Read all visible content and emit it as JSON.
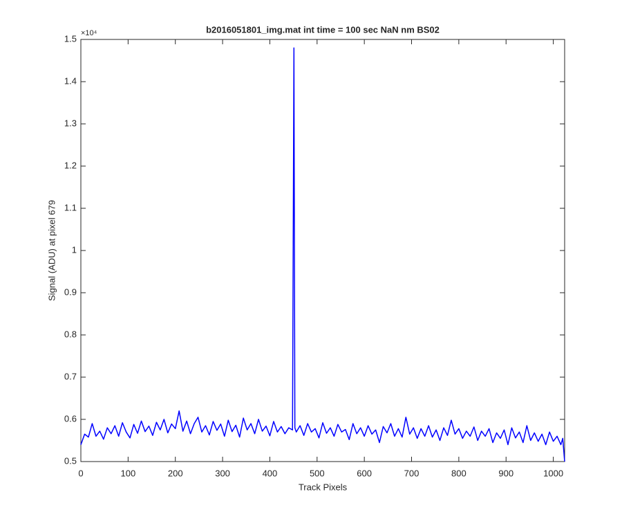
{
  "chart_data": {
    "type": "line",
    "title": "b2016051801_img.mat int time = 100 sec  NaN nm BS02",
    "x_label": "Track Pixels",
    "y_label": "Signal (ADU) at pixel 679",
    "y_exponent_label": "×10⁴",
    "x": [
      0,
      8,
      16,
      24,
      32,
      40,
      48,
      56,
      64,
      72,
      80,
      88,
      96,
      104,
      112,
      120,
      128,
      136,
      144,
      152,
      160,
      168,
      176,
      184,
      192,
      200,
      208,
      216,
      224,
      232,
      240,
      248,
      256,
      264,
      272,
      280,
      288,
      296,
      304,
      312,
      320,
      328,
      336,
      344,
      352,
      360,
      368,
      376,
      384,
      392,
      400,
      408,
      416,
      424,
      432,
      440,
      448,
      451,
      453,
      456,
      464,
      472,
      480,
      488,
      496,
      504,
      512,
      520,
      528,
      536,
      544,
      552,
      560,
      568,
      576,
      584,
      592,
      600,
      608,
      616,
      624,
      632,
      640,
      648,
      656,
      664,
      672,
      680,
      688,
      696,
      704,
      712,
      720,
      728,
      736,
      744,
      752,
      760,
      768,
      776,
      784,
      792,
      800,
      808,
      816,
      824,
      832,
      840,
      848,
      856,
      864,
      872,
      880,
      888,
      896,
      904,
      912,
      920,
      928,
      936,
      944,
      952,
      960,
      968,
      976,
      984,
      992,
      1000,
      1008,
      1016,
      1020,
      1024
    ],
    "series": [
      {
        "color": "#0000ff",
        "values": [
          0.54,
          0.565,
          0.558,
          0.59,
          0.56,
          0.572,
          0.553,
          0.58,
          0.566,
          0.585,
          0.56,
          0.592,
          0.57,
          0.556,
          0.588,
          0.567,
          0.596,
          0.571,
          0.584,
          0.562,
          0.593,
          0.575,
          0.6,
          0.568,
          0.589,
          0.578,
          0.62,
          0.572,
          0.596,
          0.566,
          0.59,
          0.605,
          0.57,
          0.585,
          0.563,
          0.595,
          0.574,
          0.589,
          0.56,
          0.598,
          0.571,
          0.586,
          0.558,
          0.603,
          0.575,
          0.59,
          0.566,
          0.6,
          0.572,
          0.584,
          0.561,
          0.595,
          0.57,
          0.583,
          0.566,
          0.58,
          0.575,
          1.48,
          0.58,
          0.57,
          0.585,
          0.562,
          0.59,
          0.57,
          0.578,
          0.556,
          0.592,
          0.567,
          0.58,
          0.56,
          0.588,
          0.57,
          0.576,
          0.552,
          0.59,
          0.566,
          0.58,
          0.56,
          0.585,
          0.565,
          0.575,
          0.545,
          0.583,
          0.568,
          0.59,
          0.56,
          0.578,
          0.558,
          0.605,
          0.565,
          0.58,
          0.555,
          0.578,
          0.56,
          0.585,
          0.558,
          0.575,
          0.55,
          0.58,
          0.562,
          0.598,
          0.565,
          0.578,
          0.555,
          0.572,
          0.56,
          0.582,
          0.55,
          0.572,
          0.56,
          0.578,
          0.545,
          0.568,
          0.555,
          0.575,
          0.54,
          0.58,
          0.556,
          0.57,
          0.545,
          0.585,
          0.55,
          0.568,
          0.548,
          0.565,
          0.54,
          0.57,
          0.548,
          0.56,
          0.54,
          0.555,
          0.5
        ]
      }
    ],
    "xlim": [
      0,
      1024
    ],
    "ylim": [
      0.5,
      1.5
    ],
    "xticks": [
      0,
      100,
      200,
      300,
      400,
      500,
      600,
      700,
      800,
      900,
      1000
    ],
    "yticks": [
      0.5,
      0.6,
      0.7,
      0.8,
      0.9,
      1,
      1.1,
      1.2,
      1.3,
      1.4,
      1.5
    ],
    "grid": false
  }
}
